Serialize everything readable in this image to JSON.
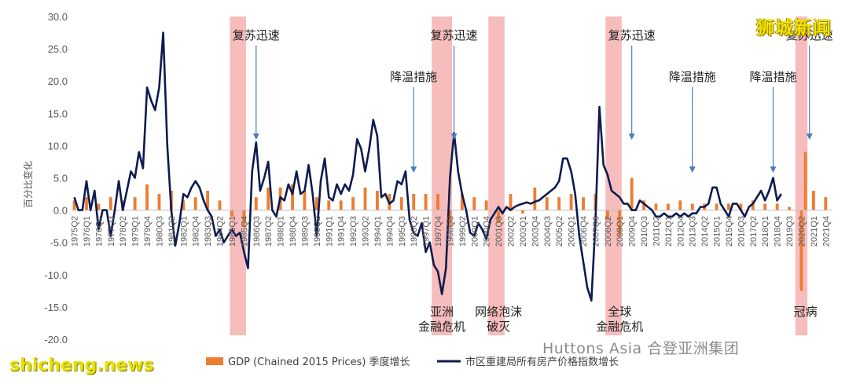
{
  "chart_data": {
    "type": "bar+line",
    "ylabel": "百分比变化",
    "ylim": [
      -20,
      30
    ],
    "yticks": [
      "30.0",
      "25.0",
      "20.0",
      "15.0",
      "10.0",
      "5.0",
      "0.0",
      "-5.0",
      "-10.0",
      "-15.0",
      "-20.0"
    ],
    "ytick_values": [
      30,
      25,
      20,
      15,
      10,
      5,
      0,
      -5,
      -10,
      -15,
      -20
    ],
    "x_start": "1975Q2",
    "x_end": "2022Q1",
    "xtick_labels": [
      "1975Q2",
      "1976Q1",
      "1976Q4",
      "1977Q3",
      "1978Q2",
      "1979Q1",
      "1979Q4",
      "1980Q3",
      "1981Q2",
      "1982Q1",
      "1982Q4",
      "1983Q3",
      "1984Q2",
      "1985Q1",
      "1985Q4",
      "1986Q3",
      "1987Q2",
      "1988Q1",
      "1988Q4",
      "1989Q3",
      "1990Q2",
      "1991Q1",
      "1991Q4",
      "1992Q3",
      "1993Q2",
      "1994Q1",
      "1994Q4",
      "1995Q3",
      "1996Q2",
      "1997Q1",
      "1997Q4",
      "1998Q3",
      "1999Q2",
      "2000Q1",
      "2000Q4",
      "2001Q3",
      "2002Q2",
      "2003Q1",
      "2003Q4",
      "2004Q3",
      "2005Q2",
      "2006Q1",
      "2006Q4",
      "2007Q3",
      "2008Q2",
      "2009Q1",
      "2009Q4",
      "2010Q3",
      "2011Q2",
      "2012Q1",
      "2012Q4",
      "2013Q3",
      "2014Q2",
      "2015Q1",
      "2015Q4",
      "2016Q3",
      "2017Q2",
      "2018Q1",
      "2018Q4",
      "2019Q3",
      "2020Q2",
      "2021Q1",
      "2021Q4"
    ],
    "series": [
      {
        "name": "GDP (Chained 2015 Prices) 季度增长",
        "kind": "bar",
        "color": "#ed7d31",
        "points": [
          [
            "1975Q2",
            1.5
          ],
          [
            "1976Q1",
            2.0
          ],
          [
            "1976Q4",
            1.0
          ],
          [
            "1977Q3",
            2.0
          ],
          [
            "1978Q2",
            1.5
          ],
          [
            "1979Q1",
            2.0
          ],
          [
            "1979Q4",
            4.0
          ],
          [
            "1980Q3",
            2.5
          ],
          [
            "1981Q2",
            3.0
          ],
          [
            "1982Q1",
            1.5
          ],
          [
            "1982Q4",
            2.0
          ],
          [
            "1983Q3",
            3.0
          ],
          [
            "1984Q2",
            1.5
          ],
          [
            "1985Q1",
            -1.0
          ],
          [
            "1985Q4",
            -2.5
          ],
          [
            "1986Q3",
            2.0
          ],
          [
            "1987Q2",
            3.5
          ],
          [
            "1988Q1",
            3.5
          ],
          [
            "1988Q4",
            4.0
          ],
          [
            "1989Q3",
            3.0
          ],
          [
            "1990Q2",
            2.0
          ],
          [
            "1991Q1",
            1.5
          ],
          [
            "1991Q4",
            1.5
          ],
          [
            "1992Q3",
            2.0
          ],
          [
            "1993Q2",
            3.5
          ],
          [
            "1994Q1",
            3.0
          ],
          [
            "1994Q4",
            2.5
          ],
          [
            "1995Q3",
            2.0
          ],
          [
            "1996Q2",
            2.5
          ],
          [
            "1997Q1",
            2.5
          ],
          [
            "1997Q4",
            2.5
          ],
          [
            "1998Q3",
            -2.5
          ],
          [
            "1999Q2",
            2.5
          ],
          [
            "2000Q1",
            2.0
          ],
          [
            "2000Q4",
            1.5
          ],
          [
            "2001Q3",
            -2.0
          ],
          [
            "2002Q2",
            2.5
          ],
          [
            "2003Q1",
            -0.5
          ],
          [
            "2003Q4",
            3.5
          ],
          [
            "2004Q3",
            2.0
          ],
          [
            "2005Q2",
            2.0
          ],
          [
            "2006Q1",
            2.5
          ],
          [
            "2006Q4",
            2.0
          ],
          [
            "2007Q3",
            2.5
          ],
          [
            "2008Q2",
            -1.5
          ],
          [
            "2009Q1",
            -4.0
          ],
          [
            "2009Q4",
            5.0
          ],
          [
            "2010Q3",
            1.5
          ],
          [
            "2011Q2",
            1.0
          ],
          [
            "2012Q1",
            1.0
          ],
          [
            "2012Q4",
            1.5
          ],
          [
            "2013Q3",
            1.0
          ],
          [
            "2014Q2",
            1.0
          ],
          [
            "2015Q1",
            1.0
          ],
          [
            "2015Q4",
            1.0
          ],
          [
            "2016Q3",
            1.0
          ],
          [
            "2017Q2",
            1.5
          ],
          [
            "2018Q1",
            1.0
          ],
          [
            "2018Q4",
            1.0
          ],
          [
            "2019Q3",
            0.5
          ],
          [
            "2020Q2",
            -12.5
          ],
          [
            "2020Q3",
            9.0
          ],
          [
            "2021Q1",
            3.0
          ],
          [
            "2021Q4",
            2.0
          ]
        ]
      },
      {
        "name": "市区重建局所有房产价格指数增长",
        "kind": "line",
        "color": "#0d1b4f",
        "points": [
          [
            "1975Q2",
            2.0
          ],
          [
            "1975Q3",
            0.0
          ],
          [
            "1975Q4",
            0.0
          ],
          [
            "1976Q1",
            4.5
          ],
          [
            "1976Q2",
            0.0
          ],
          [
            "1976Q3",
            3.0
          ],
          [
            "1976Q4",
            -3.0
          ],
          [
            "1977Q1",
            0.0
          ],
          [
            "1977Q2",
            0.0
          ],
          [
            "1977Q3",
            -4.0
          ],
          [
            "1977Q4",
            0.0
          ],
          [
            "1978Q1",
            4.5
          ],
          [
            "1978Q2",
            0.0
          ],
          [
            "1978Q3",
            3.0
          ],
          [
            "1978Q4",
            6.0
          ],
          [
            "1979Q1",
            5.0
          ],
          [
            "1979Q2",
            9.0
          ],
          [
            "1979Q3",
            6.5
          ],
          [
            "1979Q4",
            19.0
          ],
          [
            "1980Q1",
            17.0
          ],
          [
            "1980Q2",
            15.5
          ],
          [
            "1980Q3",
            19.0
          ],
          [
            "1980Q4",
            27.5
          ],
          [
            "1981Q1",
            10.0
          ],
          [
            "1981Q2",
            0.0
          ],
          [
            "1981Q3",
            -5.5
          ],
          [
            "1981Q4",
            -2.0
          ],
          [
            "1982Q1",
            2.5
          ],
          [
            "1982Q2",
            2.0
          ],
          [
            "1982Q3",
            3.5
          ],
          [
            "1982Q4",
            4.5
          ],
          [
            "1983Q1",
            3.5
          ],
          [
            "1983Q2",
            1.5
          ],
          [
            "1983Q3",
            0.0
          ],
          [
            "1983Q4",
            -1.0
          ],
          [
            "1984Q1",
            -4.0
          ],
          [
            "1984Q2",
            -3.0
          ],
          [
            "1984Q3",
            -5.0
          ],
          [
            "1984Q4",
            -4.0
          ],
          [
            "1985Q1",
            -3.0
          ],
          [
            "1985Q2",
            -4.0
          ],
          [
            "1985Q3",
            -3.5
          ],
          [
            "1985Q4",
            -6.5
          ],
          [
            "1986Q1",
            -9.0
          ],
          [
            "1986Q2",
            6.0
          ],
          [
            "1986Q3",
            10.5
          ],
          [
            "1986Q4",
            3.0
          ],
          [
            "1987Q1",
            5.0
          ],
          [
            "1987Q2",
            7.5
          ],
          [
            "1987Q3",
            0.0
          ],
          [
            "1987Q4",
            -1.0
          ],
          [
            "1988Q1",
            2.0
          ],
          [
            "1988Q2",
            1.5
          ],
          [
            "1988Q3",
            4.0
          ],
          [
            "1988Q4",
            2.5
          ],
          [
            "1989Q1",
            6.0
          ],
          [
            "1989Q2",
            2.5
          ],
          [
            "1989Q3",
            3.0
          ],
          [
            "1989Q4",
            7.0
          ],
          [
            "1990Q1",
            2.5
          ],
          [
            "1990Q2",
            -4.0
          ],
          [
            "1990Q3",
            4.5
          ],
          [
            "1990Q4",
            8.0
          ],
          [
            "1991Q1",
            2.0
          ],
          [
            "1991Q2",
            1.5
          ],
          [
            "1991Q3",
            4.0
          ],
          [
            "1991Q4",
            2.5
          ],
          [
            "1992Q1",
            4.0
          ],
          [
            "1992Q2",
            3.0
          ],
          [
            "1992Q3",
            5.5
          ],
          [
            "1992Q4",
            11.0
          ],
          [
            "1993Q1",
            9.5
          ],
          [
            "1993Q2",
            6.0
          ],
          [
            "1993Q3",
            9.5
          ],
          [
            "1993Q4",
            14.0
          ],
          [
            "1994Q1",
            11.5
          ],
          [
            "1994Q2",
            2.0
          ],
          [
            "1994Q3",
            2.5
          ],
          [
            "1994Q4",
            1.0
          ],
          [
            "1995Q1",
            1.5
          ],
          [
            "1995Q2",
            4.5
          ],
          [
            "1995Q3",
            4.0
          ],
          [
            "1995Q4",
            6.0
          ],
          [
            "1996Q1",
            -1.5
          ],
          [
            "1996Q2",
            -3.5
          ],
          [
            "1996Q3",
            -4.0
          ],
          [
            "1996Q4",
            -2.0
          ],
          [
            "1997Q1",
            -6.5
          ],
          [
            "1997Q2",
            -5.0
          ],
          [
            "1997Q3",
            -8.5
          ],
          [
            "1997Q4",
            -9.5
          ],
          [
            "1998Q1",
            -13.0
          ],
          [
            "1998Q2",
            -9.0
          ],
          [
            "1998Q3",
            5.0
          ],
          [
            "1998Q4",
            12.0
          ],
          [
            "1999Q1",
            6.0
          ],
          [
            "1999Q2",
            2.5
          ],
          [
            "1999Q3",
            0.0
          ],
          [
            "1999Q4",
            -3.5
          ],
          [
            "2000Q1",
            -4.0
          ],
          [
            "2000Q2",
            -2.0
          ],
          [
            "2000Q3",
            -3.0
          ],
          [
            "2000Q4",
            -4.5
          ],
          [
            "2001Q1",
            -1.5
          ],
          [
            "2001Q2",
            -0.5
          ],
          [
            "2001Q3",
            0.5
          ],
          [
            "2001Q4",
            -0.5
          ],
          [
            "2002Q1",
            0.5
          ],
          [
            "2002Q2",
            0.0
          ],
          [
            "2002Q3",
            0.5
          ],
          [
            "2002Q4",
            0.8
          ],
          [
            "2003Q1",
            1.0
          ],
          [
            "2003Q2",
            1.2
          ],
          [
            "2003Q3",
            1.0
          ],
          [
            "2003Q4",
            1.3
          ],
          [
            "2004Q1",
            1.5
          ],
          [
            "2004Q2",
            2.0
          ],
          [
            "2004Q3",
            2.5
          ],
          [
            "2004Q4",
            3.0
          ],
          [
            "2005Q1",
            3.5
          ],
          [
            "2005Q2",
            4.5
          ],
          [
            "2005Q3",
            8.0
          ],
          [
            "2005Q4",
            8.0
          ],
          [
            "2006Q1",
            6.0
          ],
          [
            "2006Q2",
            2.5
          ],
          [
            "2006Q3",
            -4.0
          ],
          [
            "2006Q4",
            -8.0
          ],
          [
            "2007Q1",
            -12.0
          ],
          [
            "2007Q2",
            -14.0
          ],
          [
            "2007Q3",
            -2.0
          ],
          [
            "2007Q4",
            16.0
          ],
          [
            "2008Q1",
            7.0
          ],
          [
            "2008Q2",
            5.5
          ],
          [
            "2008Q3",
            3.0
          ],
          [
            "2008Q4",
            2.5
          ],
          [
            "2009Q1",
            2.0
          ],
          [
            "2009Q2",
            1.0
          ],
          [
            "2009Q3",
            1.0
          ],
          [
            "2009Q4",
            0.0
          ],
          [
            "2010Q1",
            0.0
          ],
          [
            "2010Q2",
            1.5
          ],
          [
            "2010Q3",
            1.0
          ],
          [
            "2010Q4",
            0.5
          ],
          [
            "2011Q1",
            0.0
          ],
          [
            "2011Q2",
            -1.0
          ],
          [
            "2011Q3",
            -1.0
          ],
          [
            "2011Q4",
            -0.5
          ],
          [
            "2012Q1",
            -1.0
          ],
          [
            "2012Q2",
            -1.0
          ],
          [
            "2012Q3",
            -0.5
          ],
          [
            "2012Q4",
            -1.0
          ],
          [
            "2013Q1",
            -0.5
          ],
          [
            "2013Q2",
            -1.0
          ],
          [
            "2013Q3",
            -0.5
          ],
          [
            "2013Q4",
            -0.5
          ],
          [
            "2014Q1",
            0.5
          ],
          [
            "2014Q2",
            0.5
          ],
          [
            "2014Q3",
            1.0
          ],
          [
            "2014Q4",
            3.5
          ],
          [
            "2015Q1",
            3.5
          ],
          [
            "2015Q2",
            1.0
          ],
          [
            "2015Q3",
            0.0
          ],
          [
            "2015Q4",
            -1.0
          ],
          [
            "2016Q1",
            1.0
          ],
          [
            "2016Q2",
            1.0
          ],
          [
            "2016Q3",
            0.0
          ],
          [
            "2016Q4",
            -1.0
          ],
          [
            "2017Q1",
            0.5
          ],
          [
            "2017Q2",
            1.0
          ],
          [
            "2017Q3",
            2.0
          ],
          [
            "2017Q4",
            3.0
          ],
          [
            "2018Q1",
            1.5
          ],
          [
            "2018Q2",
            3.0
          ],
          [
            "2018Q3",
            5.0
          ],
          [
            "2018Q4",
            1.5
          ],
          [
            "2019Q1",
            2.5
          ]
        ]
      }
    ],
    "shaded_periods": [
      {
        "start": "1985Q1",
        "end": "1985Q4",
        "color": "#f4a6a6"
      },
      {
        "start": "1997Q3",
        "end": "1998Q3",
        "color": "#f4a6a6"
      },
      {
        "start": "2001Q1",
        "end": "2001Q4",
        "color": "#f4a6a6"
      },
      {
        "start": "2008Q2",
        "end": "2009Q1",
        "color": "#f4a6a6"
      },
      {
        "start": "2020Q1",
        "end": "2020Q3",
        "color": "#f4a6a6"
      }
    ],
    "annotations": [
      {
        "text": "复苏迅速",
        "kind": "recovery",
        "at": "1986Q3"
      },
      {
        "text": "降温措施",
        "kind": "cooling",
        "at": "1996Q2"
      },
      {
        "text": "复苏迅速",
        "kind": "recovery",
        "at": "1998Q4"
      },
      {
        "text": "复苏迅速",
        "kind": "recovery",
        "at": "2009Q4"
      },
      {
        "text": "降温措施",
        "kind": "cooling",
        "at": "2013Q3"
      },
      {
        "text": "降温措施",
        "kind": "cooling",
        "at": "2018Q3"
      },
      {
        "text": "复苏迅速",
        "kind": "recovery",
        "at": "2020Q4"
      },
      {
        "text": "亚洲",
        "kind": "crisis",
        "at": "1998Q1",
        "line": 1
      },
      {
        "text": "金融危机",
        "kind": "crisis",
        "at": "1998Q1",
        "line": 2
      },
      {
        "text": "网络泡沫",
        "kind": "crisis",
        "at": "2001Q3",
        "line": 1
      },
      {
        "text": "破灭",
        "kind": "crisis",
        "at": "2001Q3",
        "line": 2
      },
      {
        "text": "全球",
        "kind": "crisis",
        "at": "2009Q1",
        "line": 1
      },
      {
        "text": "金融危机",
        "kind": "crisis",
        "at": "2009Q1",
        "line": 2
      },
      {
        "text": "冠病",
        "kind": "crisis",
        "at": "2020Q3",
        "line": 1
      }
    ]
  },
  "watermarks": {
    "top_right": "狮城新闻",
    "bottom_left": "shicheng.news",
    "brand": "Huttons Asia 合登亚洲集团"
  },
  "colors": {
    "bar": "#ed7d31",
    "line": "#0d1b4f",
    "shade": "#f4a6a6",
    "axis_text": "#595959"
  }
}
